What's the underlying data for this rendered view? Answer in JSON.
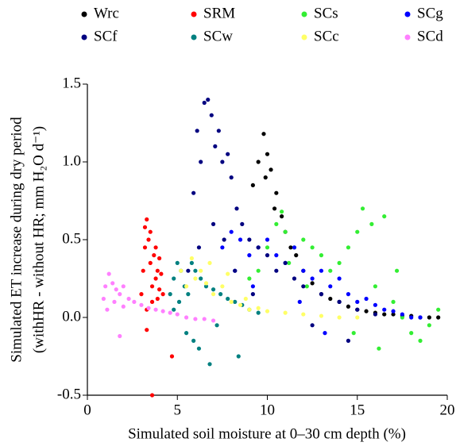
{
  "chart_data": {
    "type": "scatter",
    "xlabel": "Simulated soil moisture at 0–30 cm depth (%)",
    "ylabel": [
      "Simulated ET increase during dry period",
      "(withHR - without HR; mm H₂O d⁻¹)"
    ],
    "xlim": [
      0,
      20
    ],
    "xticks": [
      0,
      5,
      10,
      15,
      20
    ],
    "ylim": [
      -0.5,
      1.5
    ],
    "yticks": [
      -0.5,
      {
        "value": 0,
        "label": "0.0"
      },
      0.5,
      {
        "value": 1,
        "label": "1.0"
      },
      1.5
    ],
    "series": [
      {
        "name": "Wrc",
        "color": "#000000",
        "x": [
          9.2,
          9.5,
          9.8,
          10.0,
          10.2,
          10.5,
          10.8,
          11.0,
          11.3,
          11.6,
          12.0,
          12.5,
          13.0,
          13.5,
          14.0,
          14.5,
          15.0,
          15.5,
          16.0,
          16.5,
          17.0,
          17.5,
          18.0,
          18.5,
          19.0,
          19.5,
          9.9,
          10.4
        ],
        "values": [
          0.85,
          1.0,
          1.18,
          1.05,
          0.95,
          0.8,
          0.65,
          0.55,
          0.45,
          0.4,
          0.3,
          0.22,
          0.15,
          0.12,
          0.1,
          0.07,
          0.05,
          0.04,
          0.03,
          0.02,
          0.02,
          0.01,
          0.01,
          0.0,
          0.0,
          0.0,
          0.9,
          0.7
        ]
      },
      {
        "name": "SRM",
        "color": "#ff0000",
        "x": [
          3.0,
          3.1,
          3.2,
          3.3,
          3.4,
          3.5,
          3.6,
          3.7,
          3.8,
          3.9,
          4.0,
          4.1,
          4.2,
          3.2,
          3.5,
          3.8,
          4.0,
          3.3,
          3.6,
          3.9,
          3.6,
          4.7,
          3.3
        ],
        "values": [
          0.15,
          0.3,
          0.45,
          0.63,
          0.5,
          0.35,
          0.2,
          0.4,
          0.25,
          0.3,
          0.18,
          0.28,
          0.15,
          0.58,
          0.55,
          0.45,
          0.38,
          0.05,
          0.1,
          0.12,
          -0.5,
          -0.25,
          -0.08
        ]
      },
      {
        "name": "SCs",
        "color": "#33ee33",
        "x": [
          9.0,
          9.5,
          10.0,
          10.5,
          10.8,
          11.0,
          11.5,
          12.0,
          12.5,
          13.0,
          13.5,
          14.0,
          14.5,
          15.0,
          15.3,
          15.8,
          16.0,
          16.5,
          17.0,
          17.5,
          18.0,
          18.5,
          19.0,
          19.5,
          16.2,
          17.2,
          14.8,
          12.2,
          11.2
        ],
        "values": [
          0.25,
          0.3,
          0.45,
          0.6,
          0.68,
          0.55,
          0.45,
          0.5,
          0.45,
          0.4,
          0.3,
          0.35,
          0.45,
          0.55,
          0.7,
          0.6,
          0.2,
          0.65,
          0.1,
          0.0,
          -0.1,
          -0.15,
          -0.05,
          0.05,
          -0.2,
          0.3,
          -0.1,
          0.2,
          0.35
        ]
      },
      {
        "name": "SCg",
        "color": "#0000ff",
        "x": [
          7.5,
          8.0,
          8.5,
          9.0,
          9.5,
          10.0,
          10.5,
          11.0,
          11.5,
          12.0,
          12.5,
          13.0,
          13.5,
          14.0,
          14.5,
          15.0,
          15.5,
          16.0,
          16.5,
          17.0,
          17.5,
          18.0,
          18.5,
          11.8,
          13.2,
          9.2,
          8.2
        ],
        "values": [
          0.45,
          0.55,
          0.5,
          0.4,
          0.45,
          0.5,
          0.4,
          0.35,
          0.45,
          0.3,
          0.25,
          0.3,
          0.2,
          0.25,
          0.15,
          0.1,
          0.12,
          0.08,
          0.05,
          0.04,
          0.02,
          0.0,
          0.0,
          0.1,
          -0.1,
          0.2,
          0.3
        ]
      },
      {
        "name": "SCf",
        "color": "#000080",
        "x": [
          5.6,
          5.9,
          6.1,
          6.3,
          6.5,
          6.7,
          6.9,
          7.1,
          7.3,
          7.5,
          7.8,
          8.0,
          8.3,
          8.6,
          9.0,
          9.5,
          10.0,
          10.5,
          11.0,
          11.5,
          12.0,
          13.0,
          14.0,
          15.0,
          16.0,
          6.2,
          7.0,
          7.6,
          8.2,
          9.2,
          12.5,
          14.5
        ],
        "values": [
          0.3,
          0.8,
          1.2,
          1.0,
          1.38,
          1.4,
          1.3,
          1.1,
          1.2,
          1.0,
          1.05,
          0.9,
          0.7,
          0.6,
          0.5,
          0.45,
          0.4,
          0.3,
          0.35,
          0.25,
          0.2,
          0.15,
          0.1,
          0.05,
          0.02,
          0.45,
          0.6,
          0.5,
          0.3,
          0.15,
          -0.05,
          -0.15
        ]
      },
      {
        "name": "SCw",
        "color": "#008080",
        "x": [
          4.6,
          4.8,
          5.0,
          5.2,
          5.4,
          5.6,
          5.8,
          6.0,
          6.3,
          6.6,
          7.0,
          7.4,
          7.8,
          8.2,
          8.6,
          9.0,
          9.5,
          5.5,
          6.2,
          6.8,
          5.9,
          7.2,
          8.4,
          4.8,
          5.1
        ],
        "values": [
          0.15,
          0.25,
          0.35,
          0.3,
          0.2,
          0.15,
          0.35,
          0.3,
          0.25,
          0.2,
          0.18,
          0.15,
          0.12,
          0.1,
          0.08,
          0.05,
          0.03,
          -0.1,
          -0.2,
          -0.3,
          -0.15,
          -0.05,
          -0.25,
          0.05,
          0.1
        ]
      },
      {
        "name": "SCc",
        "color": "#ffff66",
        "x": [
          5.2,
          5.5,
          5.8,
          6.0,
          6.3,
          6.6,
          7.0,
          7.5,
          8.0,
          8.5,
          9.0,
          9.5,
          10.0,
          11.0,
          12.0,
          13.0,
          14.0,
          15.0,
          6.8,
          7.8,
          8.8
        ],
        "values": [
          0.3,
          0.2,
          0.38,
          0.25,
          0.3,
          0.22,
          0.15,
          0.2,
          0.1,
          0.08,
          0.05,
          0.06,
          0.04,
          0.03,
          0.02,
          0.01,
          0.0,
          0.0,
          0.35,
          0.28,
          0.12
        ]
      },
      {
        "name": "SCd",
        "color": "#ff80ff",
        "x": [
          0.9,
          1.0,
          1.2,
          1.4,
          1.6,
          1.8,
          2.0,
          2.3,
          2.6,
          3.0,
          3.4,
          3.8,
          4.2,
          4.6,
          5.0,
          5.5,
          6.0,
          6.5,
          7.0,
          1.1,
          1.5,
          2.0,
          1.8
        ],
        "values": [
          0.12,
          0.2,
          0.28,
          0.22,
          0.18,
          0.15,
          0.2,
          0.12,
          0.1,
          0.08,
          0.06,
          0.05,
          0.04,
          0.03,
          0.02,
          0.0,
          -0.01,
          -0.01,
          -0.02,
          0.05,
          0.1,
          0.07,
          -0.12
        ]
      }
    ]
  }
}
